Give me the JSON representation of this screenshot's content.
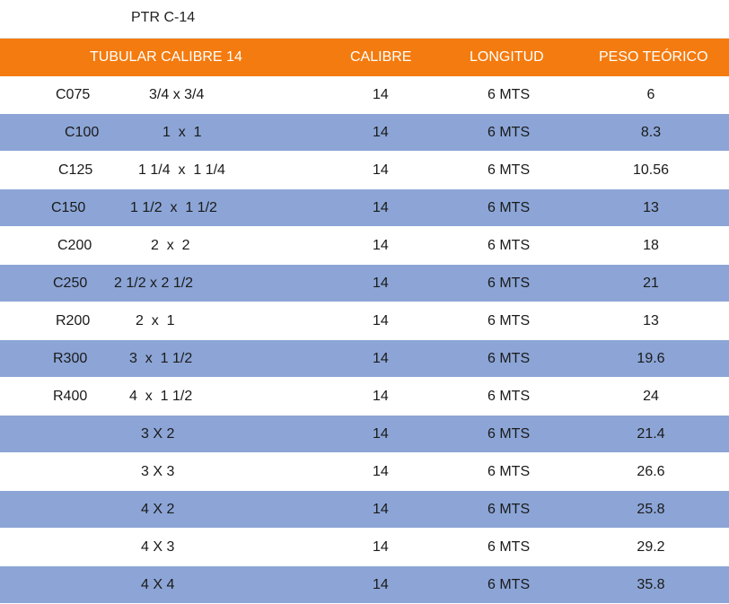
{
  "title": "PTR C-14",
  "header": {
    "description": "TUBULAR CALIBRE 14",
    "calibre": "CALIBRE",
    "longitud": "LONGITUD",
    "peso": "PESO TEÓRICO"
  },
  "rows": [
    {
      "code": "C075",
      "size": "3/4 x 3/4",
      "calibre": "14",
      "longitud": "6 MTS",
      "peso": "6"
    },
    {
      "code": "C100",
      "size": "1  x  1",
      "calibre": "14",
      "longitud": "6 MTS",
      "peso": "8.3"
    },
    {
      "code": "C125",
      "size": "1 1/4  x  1 1/4",
      "calibre": "14",
      "longitud": "6 MTS",
      "peso": "10.56"
    },
    {
      "code": "C150",
      "size": "1 1/2  x  1 1/2",
      "calibre": "14",
      "longitud": "6 MTS",
      "peso": "13"
    },
    {
      "code": "C200",
      "size": "2  x  2",
      "calibre": "14",
      "longitud": "6 MTS",
      "peso": "18"
    },
    {
      "code": "C250",
      "size": "2 1/2 x 2 1/2",
      "calibre": "14",
      "longitud": "6 MTS",
      "peso": "21"
    },
    {
      "code": "R200",
      "size": "2  x  1",
      "calibre": "14",
      "longitud": "6 MTS",
      "peso": "13"
    },
    {
      "code": "R300",
      "size": "3  x  1 1/2",
      "calibre": "14",
      "longitud": "6 MTS",
      "peso": "19.6"
    },
    {
      "code": "R400",
      "size": "4  x  1 1/2",
      "calibre": "14",
      "longitud": "6 MTS",
      "peso": "24"
    },
    {
      "code": "",
      "size": "3 X 2",
      "calibre": "14",
      "longitud": "6 MTS",
      "peso": "21.4"
    },
    {
      "code": "",
      "size": "3 X 3",
      "calibre": "14",
      "longitud": "6 MTS",
      "peso": "26.6"
    },
    {
      "code": "",
      "size": "4 X 2",
      "calibre": "14",
      "longitud": "6 MTS",
      "peso": "25.8"
    },
    {
      "code": "",
      "size": "4 X 3",
      "calibre": "14",
      "longitud": "6 MTS",
      "peso": "29.2"
    },
    {
      "code": "",
      "size": "4 X 4",
      "calibre": "14",
      "longitud": "6 MTS",
      "peso": "35.8"
    }
  ]
}
